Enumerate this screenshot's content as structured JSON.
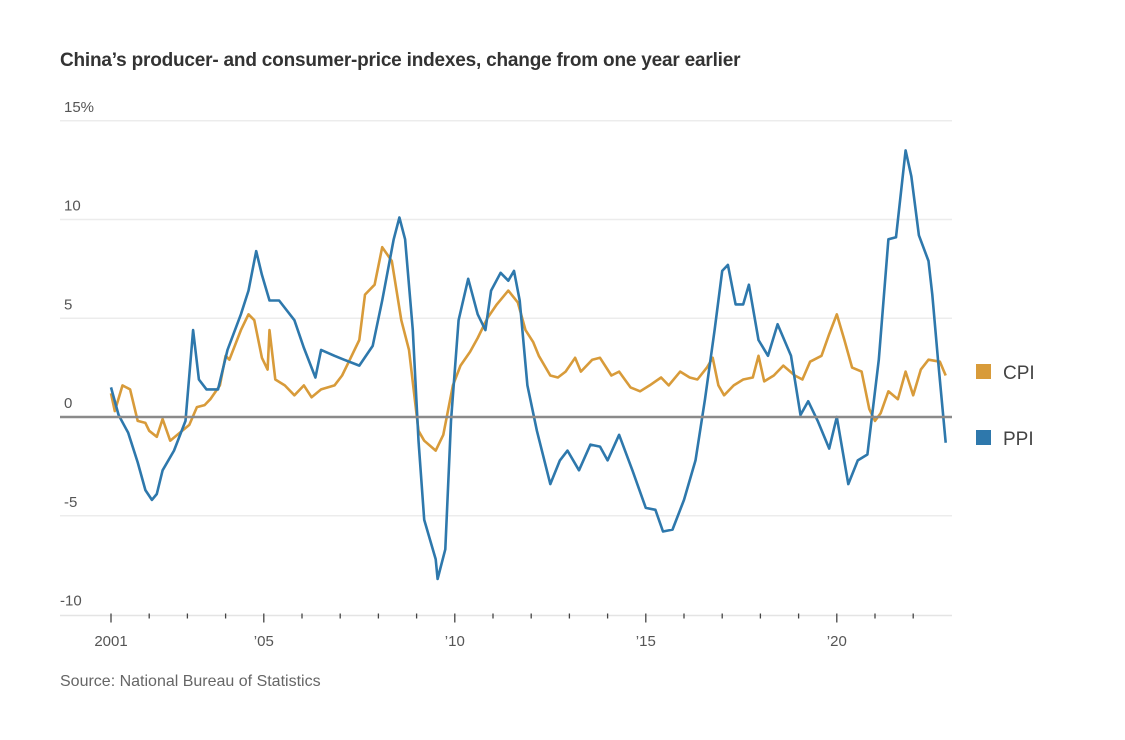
{
  "chart_data": {
    "type": "line",
    "title": "China’s producer- and consumer-price indexes, change from one year earlier",
    "source": "Source: National Bureau of Statistics",
    "xlabel": "",
    "ylabel": "",
    "xlim": [
      2001,
      2023
    ],
    "ylim": [
      -10,
      15
    ],
    "yticks": [
      {
        "v": 15,
        "label": "15%"
      },
      {
        "v": 10,
        "label": "10"
      },
      {
        "v": 5,
        "label": "5"
      },
      {
        "v": 0,
        "label": "0"
      },
      {
        "v": -5,
        "label": "-5"
      },
      {
        "v": -10,
        "label": "-10"
      }
    ],
    "xticks": [
      {
        "v": 2001,
        "label": "2001"
      },
      {
        "v": 2005,
        "label": "’05"
      },
      {
        "v": 2010,
        "label": "’10"
      },
      {
        "v": 2015,
        "label": "’15"
      },
      {
        "v": 2020,
        "label": "’20"
      }
    ],
    "grid": true,
    "legend_placement": "right",
    "series": [
      {
        "name": "CPI",
        "color": "#D89B3A",
        "points": [
          [
            2001.0,
            1.2
          ],
          [
            2001.1,
            0.3
          ],
          [
            2001.3,
            1.6
          ],
          [
            2001.5,
            1.4
          ],
          [
            2001.7,
            -0.2
          ],
          [
            2001.9,
            -0.3
          ],
          [
            2002.0,
            -0.7
          ],
          [
            2002.2,
            -1.0
          ],
          [
            2002.35,
            -0.1
          ],
          [
            2002.55,
            -1.2
          ],
          [
            2002.8,
            -0.8
          ],
          [
            2003.05,
            -0.4
          ],
          [
            2003.25,
            0.5
          ],
          [
            2003.45,
            0.6
          ],
          [
            2003.6,
            0.9
          ],
          [
            2003.85,
            1.6
          ],
          [
            2004.0,
            3.1
          ],
          [
            2004.1,
            2.9
          ],
          [
            2004.4,
            4.4
          ],
          [
            2004.6,
            5.2
          ],
          [
            2004.75,
            4.9
          ],
          [
            2004.95,
            3.0
          ],
          [
            2005.1,
            2.4
          ],
          [
            2005.15,
            4.4
          ],
          [
            2005.3,
            1.9
          ],
          [
            2005.55,
            1.6
          ],
          [
            2005.8,
            1.1
          ],
          [
            2006.05,
            1.6
          ],
          [
            2006.25,
            1.0
          ],
          [
            2006.5,
            1.4
          ],
          [
            2006.85,
            1.6
          ],
          [
            2007.05,
            2.1
          ],
          [
            2007.25,
            2.9
          ],
          [
            2007.5,
            3.9
          ],
          [
            2007.65,
            6.2
          ],
          [
            2007.9,
            6.7
          ],
          [
            2008.1,
            8.6
          ],
          [
            2008.35,
            7.9
          ],
          [
            2008.6,
            4.9
          ],
          [
            2008.8,
            3.4
          ],
          [
            2009.05,
            -0.7
          ],
          [
            2009.2,
            -1.2
          ],
          [
            2009.5,
            -1.7
          ],
          [
            2009.7,
            -0.9
          ],
          [
            2009.95,
            1.6
          ],
          [
            2010.15,
            2.6
          ],
          [
            2010.4,
            3.3
          ],
          [
            2010.6,
            4.0
          ],
          [
            2010.85,
            5.0
          ],
          [
            2011.1,
            5.7
          ],
          [
            2011.4,
            6.4
          ],
          [
            2011.65,
            5.8
          ],
          [
            2011.85,
            4.4
          ],
          [
            2012.05,
            3.8
          ],
          [
            2012.2,
            3.1
          ],
          [
            2012.5,
            2.1
          ],
          [
            2012.7,
            2.0
          ],
          [
            2012.9,
            2.3
          ],
          [
            2013.15,
            3.0
          ],
          [
            2013.3,
            2.3
          ],
          [
            2013.6,
            2.9
          ],
          [
            2013.8,
            3.0
          ],
          [
            2014.1,
            2.1
          ],
          [
            2014.3,
            2.3
          ],
          [
            2014.6,
            1.5
          ],
          [
            2014.85,
            1.3
          ],
          [
            2015.1,
            1.6
          ],
          [
            2015.4,
            2.0
          ],
          [
            2015.6,
            1.6
          ],
          [
            2015.9,
            2.3
          ],
          [
            2016.15,
            2.0
          ],
          [
            2016.35,
            1.9
          ],
          [
            2016.6,
            2.5
          ],
          [
            2016.75,
            3.0
          ],
          [
            2016.9,
            1.6
          ],
          [
            2017.05,
            1.1
          ],
          [
            2017.3,
            1.6
          ],
          [
            2017.55,
            1.9
          ],
          [
            2017.8,
            2.0
          ],
          [
            2017.95,
            3.1
          ],
          [
            2018.1,
            1.8
          ],
          [
            2018.35,
            2.1
          ],
          [
            2018.6,
            2.6
          ],
          [
            2018.9,
            2.1
          ],
          [
            2019.1,
            1.9
          ],
          [
            2019.3,
            2.8
          ],
          [
            2019.6,
            3.1
          ],
          [
            2019.8,
            4.2
          ],
          [
            2020.0,
            5.2
          ],
          [
            2020.2,
            3.9
          ],
          [
            2020.4,
            2.5
          ],
          [
            2020.65,
            2.3
          ],
          [
            2020.85,
            0.4
          ],
          [
            2021.0,
            -0.2
          ],
          [
            2021.15,
            0.2
          ],
          [
            2021.35,
            1.3
          ],
          [
            2021.6,
            0.9
          ],
          [
            2021.8,
            2.3
          ],
          [
            2022.0,
            1.1
          ],
          [
            2022.2,
            2.4
          ],
          [
            2022.4,
            2.9
          ],
          [
            2022.7,
            2.8
          ],
          [
            2022.85,
            2.1
          ]
        ]
      },
      {
        "name": "PPI",
        "color": "#2E78AC",
        "points": [
          [
            2001.0,
            1.5
          ],
          [
            2001.2,
            0.1
          ],
          [
            2001.45,
            -0.8
          ],
          [
            2001.7,
            -2.3
          ],
          [
            2001.9,
            -3.7
          ],
          [
            2002.07,
            -4.2
          ],
          [
            2002.2,
            -3.9
          ],
          [
            2002.35,
            -2.7
          ],
          [
            2002.65,
            -1.7
          ],
          [
            2002.95,
            -0.2
          ],
          [
            2003.15,
            4.4
          ],
          [
            2003.3,
            1.9
          ],
          [
            2003.5,
            1.4
          ],
          [
            2003.8,
            1.4
          ],
          [
            2004.05,
            3.4
          ],
          [
            2004.4,
            5.2
          ],
          [
            2004.6,
            6.4
          ],
          [
            2004.8,
            8.4
          ],
          [
            2004.95,
            7.2
          ],
          [
            2005.15,
            5.9
          ],
          [
            2005.4,
            5.9
          ],
          [
            2005.8,
            4.9
          ],
          [
            2006.05,
            3.5
          ],
          [
            2006.35,
            2.0
          ],
          [
            2006.5,
            3.4
          ],
          [
            2006.85,
            3.1
          ],
          [
            2007.1,
            2.9
          ],
          [
            2007.5,
            2.6
          ],
          [
            2007.85,
            3.6
          ],
          [
            2008.1,
            5.9
          ],
          [
            2008.4,
            9.0
          ],
          [
            2008.55,
            10.1
          ],
          [
            2008.7,
            9.0
          ],
          [
            2008.9,
            4.4
          ],
          [
            2009.05,
            -1.2
          ],
          [
            2009.2,
            -5.2
          ],
          [
            2009.5,
            -7.2
          ],
          [
            2009.55,
            -8.2
          ],
          [
            2009.75,
            -6.7
          ],
          [
            2009.9,
            -0.2
          ],
          [
            2010.1,
            4.9
          ],
          [
            2010.35,
            7.0
          ],
          [
            2010.6,
            5.2
          ],
          [
            2010.8,
            4.4
          ],
          [
            2010.95,
            6.4
          ],
          [
            2011.2,
            7.3
          ],
          [
            2011.4,
            6.9
          ],
          [
            2011.55,
            7.4
          ],
          [
            2011.7,
            5.9
          ],
          [
            2011.9,
            1.6
          ],
          [
            2012.15,
            -0.7
          ],
          [
            2012.5,
            -3.4
          ],
          [
            2012.75,
            -2.2
          ],
          [
            2012.95,
            -1.7
          ],
          [
            2013.25,
            -2.7
          ],
          [
            2013.55,
            -1.4
          ],
          [
            2013.8,
            -1.5
          ],
          [
            2014.0,
            -2.2
          ],
          [
            2014.3,
            -0.9
          ],
          [
            2014.65,
            -2.7
          ],
          [
            2015.0,
            -4.6
          ],
          [
            2015.25,
            -4.7
          ],
          [
            2015.45,
            -5.8
          ],
          [
            2015.7,
            -5.7
          ],
          [
            2016.0,
            -4.2
          ],
          [
            2016.3,
            -2.2
          ],
          [
            2016.55,
            0.9
          ],
          [
            2016.8,
            4.4
          ],
          [
            2017.0,
            7.4
          ],
          [
            2017.15,
            7.7
          ],
          [
            2017.35,
            5.7
          ],
          [
            2017.55,
            5.7
          ],
          [
            2017.7,
            6.7
          ],
          [
            2017.95,
            3.9
          ],
          [
            2018.2,
            3.1
          ],
          [
            2018.45,
            4.7
          ],
          [
            2018.8,
            3.1
          ],
          [
            2019.05,
            0.1
          ],
          [
            2019.25,
            0.8
          ],
          [
            2019.5,
            -0.2
          ],
          [
            2019.8,
            -1.6
          ],
          [
            2020.0,
            0.0
          ],
          [
            2020.3,
            -3.4
          ],
          [
            2020.55,
            -2.2
          ],
          [
            2020.8,
            -1.9
          ],
          [
            2021.1,
            2.9
          ],
          [
            2021.35,
            9.0
          ],
          [
            2021.55,
            9.1
          ],
          [
            2021.8,
            13.5
          ],
          [
            2021.95,
            12.2
          ],
          [
            2022.15,
            9.2
          ],
          [
            2022.4,
            7.9
          ],
          [
            2022.5,
            6.2
          ],
          [
            2022.65,
            2.9
          ],
          [
            2022.85,
            -1.3
          ]
        ]
      }
    ]
  }
}
